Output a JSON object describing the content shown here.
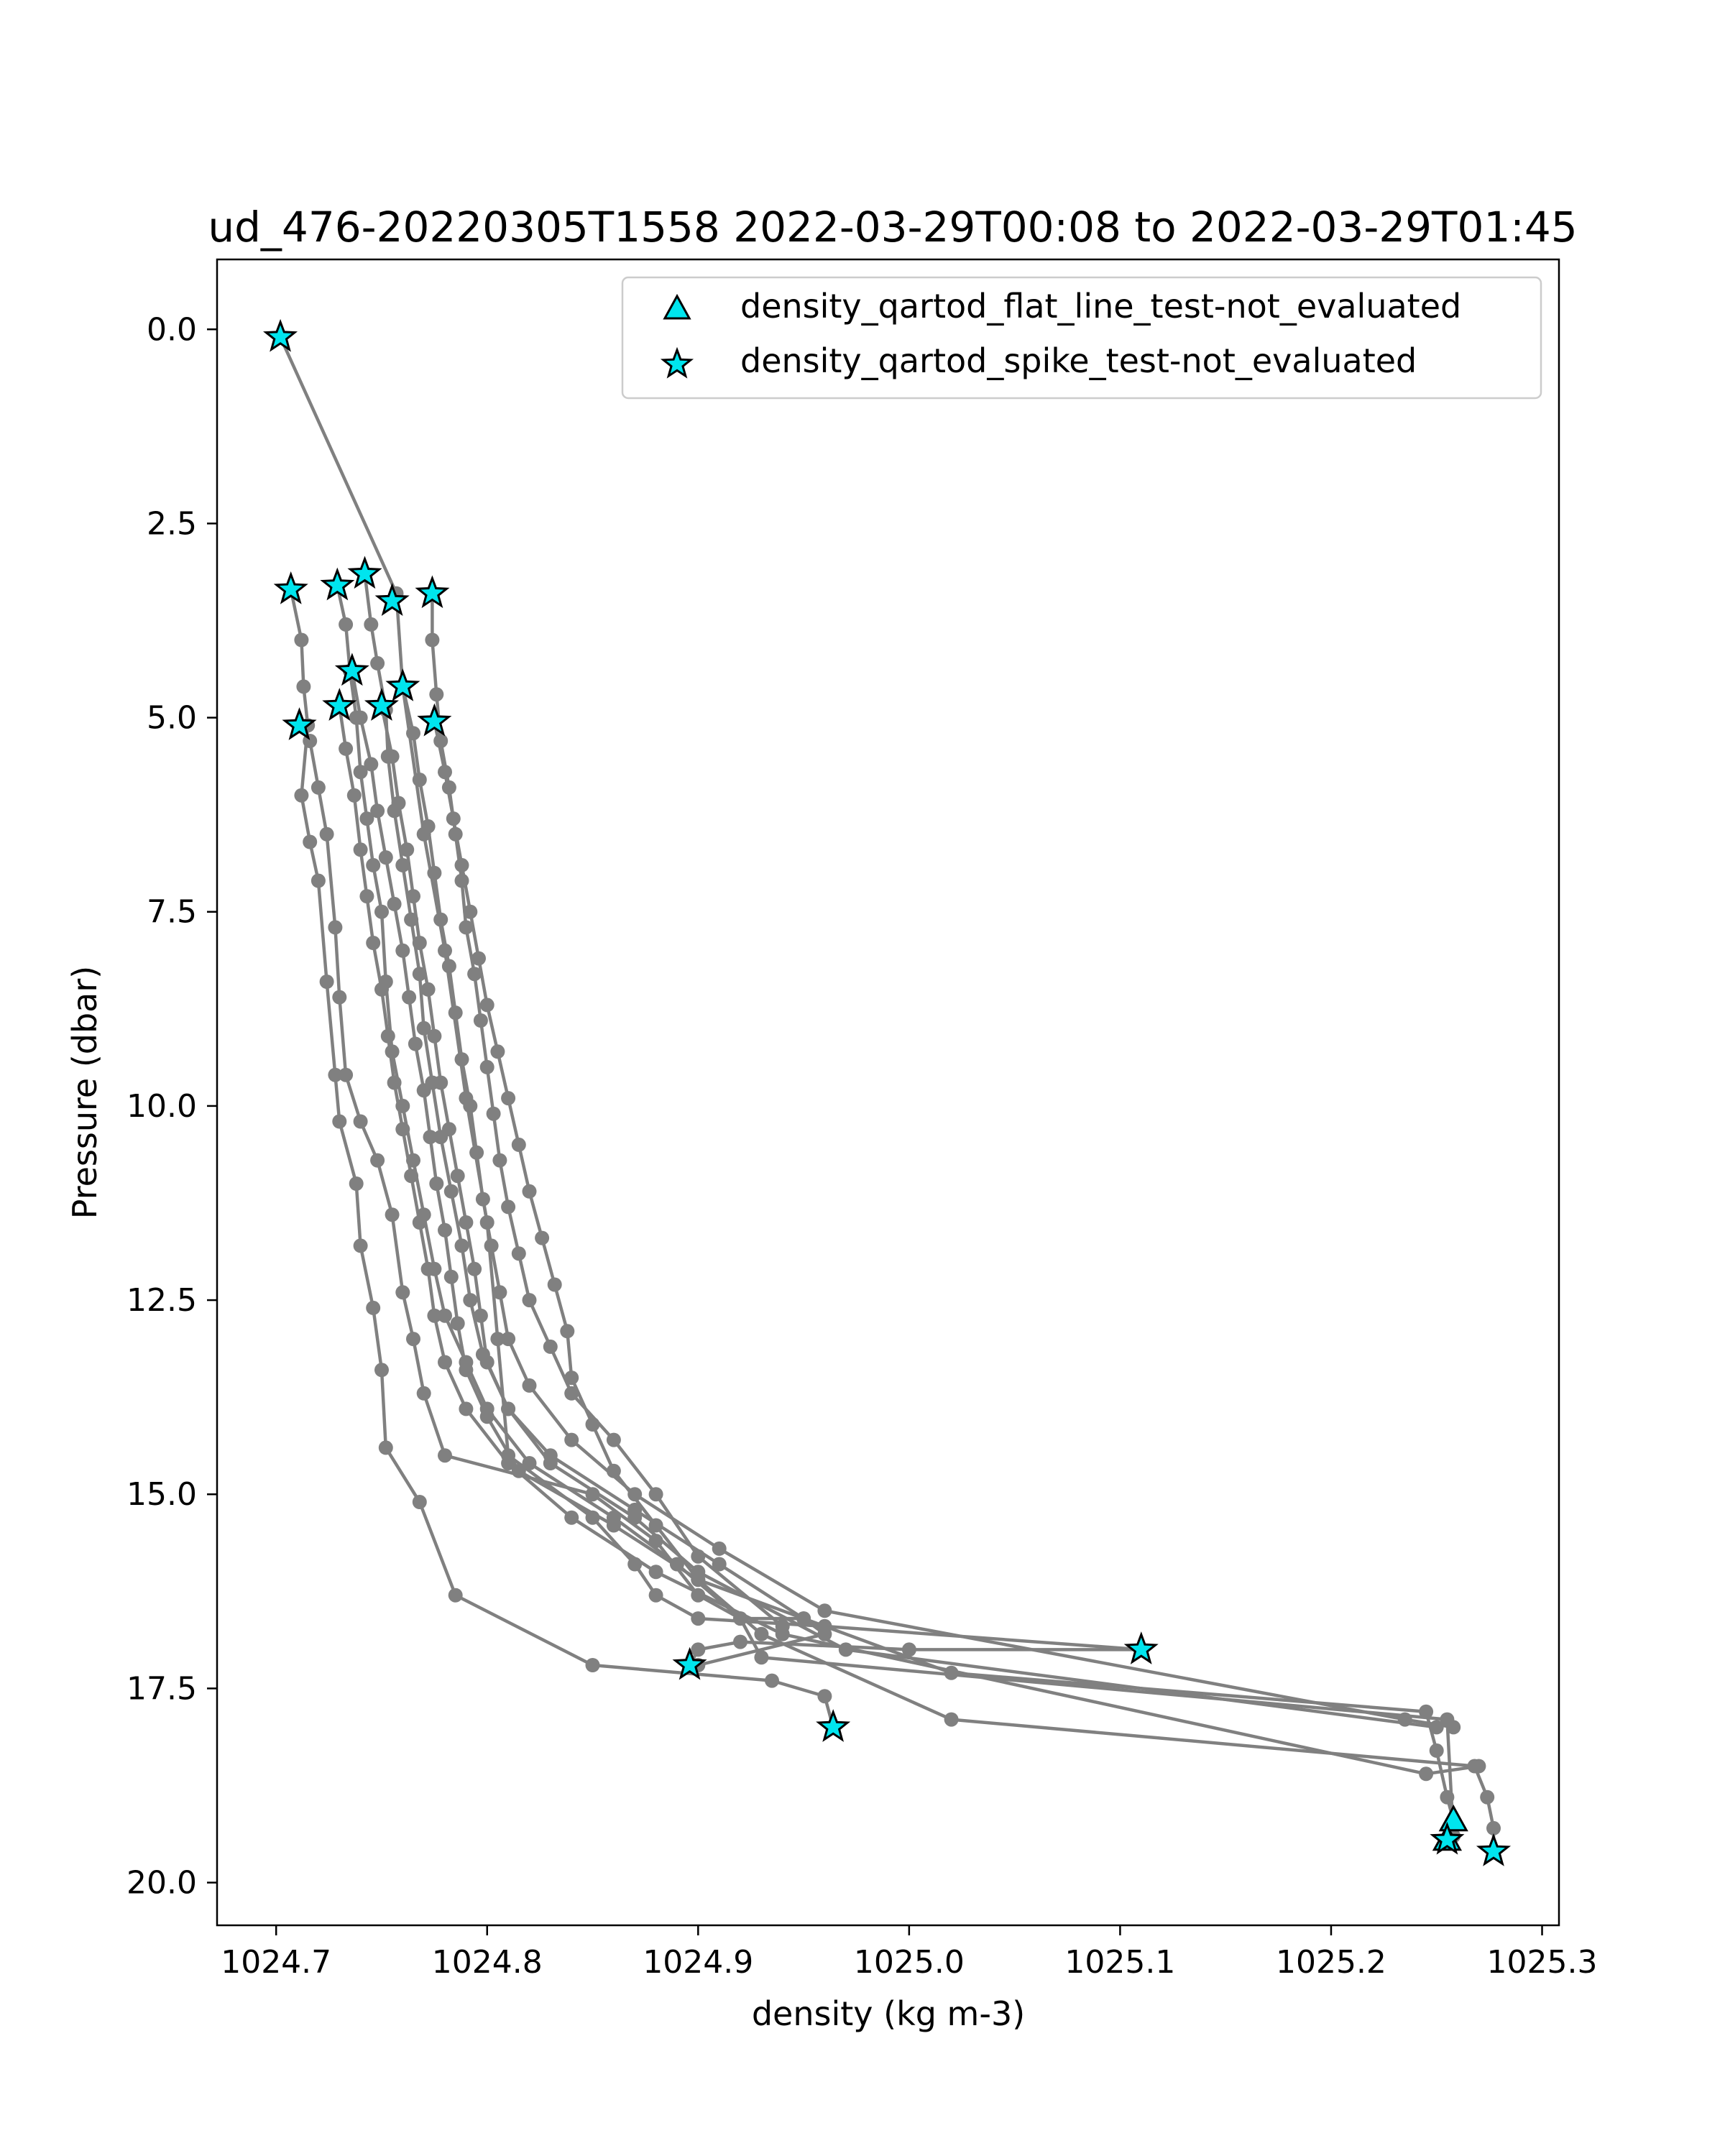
{
  "chart_data": {
    "type": "scatter",
    "title": "ud_476-20220305T1558 2022-03-29T00:08 to 2022-03-29T01:45",
    "xlabel": "density (kg m-3)",
    "ylabel": "Pressure (dbar)",
    "xlim": [
      1024.672,
      1025.308
    ],
    "ylim": [
      20.55,
      -0.9
    ],
    "y_inverted": true,
    "xticks": [
      1024.7,
      1024.8,
      1024.9,
      1025.0,
      1025.1,
      1025.2,
      1025.3
    ],
    "xtick_labels": [
      "1024.7",
      "1024.8",
      "1024.9",
      "1025.0",
      "1025.1",
      "1025.2",
      "1025.3"
    ],
    "yticks": [
      0.0,
      2.5,
      5.0,
      7.5,
      10.0,
      12.5,
      15.0,
      17.5,
      20.0
    ],
    "ytick_labels": [
      "0.0",
      "2.5",
      "5.0",
      "7.5",
      "10.0",
      "12.5",
      "15.0",
      "17.5",
      "20.0"
    ],
    "grid": false,
    "legend_position": "top-right",
    "colors": {
      "profile": "#808080",
      "marker_fill": "#00e5ee",
      "marker_edge": "#000000"
    },
    "legend": [
      {
        "label": "density_qartod_flat_line_test-not_evaluated",
        "marker": "triangle"
      },
      {
        "label": "density_qartod_spike_test-not_evaluated",
        "marker": "star"
      }
    ],
    "profiles": [
      {
        "points": [
          [
            1024.702,
            0.1
          ],
          [
            1024.757,
            3.4
          ],
          [
            1024.76,
            4.6
          ],
          [
            1024.77,
            6.5
          ],
          [
            1024.78,
            8.0
          ],
          [
            1024.79,
            9.9
          ],
          [
            1024.8,
            11.5
          ],
          [
            1024.805,
            13.0
          ],
          [
            1024.81,
            14.5
          ],
          [
            1024.85,
            15.3
          ],
          [
            1024.87,
            15.9
          ],
          [
            1024.88,
            16.3
          ],
          [
            1024.9,
            16.6
          ],
          [
            1024.96,
            16.7
          ],
          [
            1025.11,
            17.0
          ]
        ]
      },
      {
        "points": [
          [
            1025.11,
            17.0
          ],
          [
            1025.0,
            17.0
          ],
          [
            1024.92,
            16.9
          ],
          [
            1024.9,
            17.0
          ],
          [
            1024.896,
            17.2
          ]
        ]
      },
      {
        "points": [
          [
            1024.707,
            3.35
          ],
          [
            1024.712,
            4.0
          ],
          [
            1024.713,
            4.6
          ],
          [
            1024.715,
            5.1
          ],
          [
            1024.712,
            6.0
          ],
          [
            1024.716,
            6.6
          ],
          [
            1024.72,
            7.1
          ],
          [
            1024.724,
            8.4
          ],
          [
            1024.728,
            9.6
          ],
          [
            1024.73,
            10.2
          ],
          [
            1024.738,
            11.0
          ],
          [
            1024.74,
            11.8
          ],
          [
            1024.746,
            12.6
          ],
          [
            1024.75,
            13.4
          ],
          [
            1024.752,
            14.4
          ],
          [
            1024.768,
            15.1
          ],
          [
            1024.785,
            16.3
          ],
          [
            1024.85,
            17.2
          ],
          [
            1024.935,
            17.4
          ],
          [
            1024.96,
            17.6
          ],
          [
            1024.964,
            18.0
          ]
        ]
      },
      {
        "points": [
          [
            1024.711,
            5.1
          ],
          [
            1024.716,
            5.3
          ],
          [
            1024.72,
            5.9
          ],
          [
            1024.724,
            6.5
          ],
          [
            1024.728,
            7.7
          ],
          [
            1024.73,
            8.6
          ],
          [
            1024.733,
            9.6
          ],
          [
            1024.74,
            10.2
          ],
          [
            1024.748,
            10.7
          ],
          [
            1024.755,
            11.4
          ],
          [
            1024.76,
            12.4
          ],
          [
            1024.765,
            13.0
          ],
          [
            1024.77,
            13.7
          ],
          [
            1024.78,
            14.5
          ],
          [
            1024.85,
            15.0
          ],
          [
            1024.88,
            15.6
          ],
          [
            1024.9,
            16.3
          ],
          [
            1024.92,
            16.6
          ],
          [
            1024.95,
            16.6
          ],
          [
            1025.02,
            17.3
          ],
          [
            1025.245,
            17.8
          ],
          [
            1025.25,
            18.3
          ],
          [
            1025.255,
            18.9
          ],
          [
            1025.258,
            19.2
          ]
        ]
      },
      {
        "points": [
          [
            1024.729,
            3.3
          ],
          [
            1024.733,
            3.8
          ],
          [
            1024.735,
            4.4
          ],
          [
            1024.738,
            5.0
          ],
          [
            1024.74,
            5.7
          ],
          [
            1024.743,
            6.3
          ],
          [
            1024.746,
            6.9
          ],
          [
            1024.75,
            7.5
          ],
          [
            1024.752,
            8.4
          ],
          [
            1024.755,
            9.3
          ],
          [
            1024.76,
            10.0
          ],
          [
            1024.765,
            10.7
          ],
          [
            1024.77,
            11.4
          ],
          [
            1024.775,
            12.1
          ],
          [
            1024.78,
            12.7
          ],
          [
            1024.79,
            13.3
          ],
          [
            1024.8,
            13.9
          ],
          [
            1024.82,
            14.6
          ],
          [
            1024.86,
            15.3
          ],
          [
            1024.89,
            15.9
          ],
          [
            1024.92,
            16.6
          ],
          [
            1024.93,
            17.1
          ],
          [
            1025.255,
            17.9
          ],
          [
            1025.258,
            19.4
          ]
        ]
      },
      {
        "points": [
          [
            1024.742,
            3.15
          ],
          [
            1024.745,
            3.8
          ],
          [
            1024.748,
            4.3
          ],
          [
            1024.752,
            4.9
          ],
          [
            1024.753,
            5.5
          ],
          [
            1024.756,
            6.2
          ],
          [
            1024.76,
            6.9
          ],
          [
            1024.764,
            7.6
          ],
          [
            1024.768,
            8.3
          ],
          [
            1024.77,
            9.0
          ],
          [
            1024.774,
            9.7
          ],
          [
            1024.778,
            10.4
          ],
          [
            1024.783,
            11.1
          ],
          [
            1024.788,
            11.8
          ],
          [
            1024.792,
            12.5
          ],
          [
            1024.798,
            13.2
          ],
          [
            1024.81,
            13.9
          ],
          [
            1024.83,
            14.6
          ],
          [
            1024.87,
            15.3
          ],
          [
            1024.9,
            16.0
          ],
          [
            1024.97,
            17.0
          ],
          [
            1025.25,
            18.0
          ]
        ]
      },
      {
        "points": [
          [
            1024.736,
            4.4
          ],
          [
            1024.74,
            5.0
          ],
          [
            1024.745,
            5.6
          ],
          [
            1024.748,
            6.2
          ],
          [
            1024.752,
            6.8
          ],
          [
            1024.756,
            7.4
          ],
          [
            1024.76,
            8.0
          ],
          [
            1024.763,
            8.6
          ],
          [
            1024.766,
            9.2
          ],
          [
            1024.77,
            9.8
          ],
          [
            1024.773,
            10.4
          ],
          [
            1024.776,
            11.0
          ],
          [
            1024.78,
            11.6
          ],
          [
            1024.783,
            12.2
          ],
          [
            1024.786,
            12.8
          ],
          [
            1024.79,
            13.4
          ],
          [
            1024.8,
            14.0
          ],
          [
            1024.815,
            14.7
          ],
          [
            1024.86,
            15.4
          ],
          [
            1024.9,
            16.1
          ],
          [
            1024.93,
            16.8
          ],
          [
            1025.02,
            17.9
          ],
          [
            1025.268,
            18.5
          ],
          [
            1025.274,
            18.9
          ],
          [
            1025.277,
            19.3
          ],
          [
            1025.277,
            19.6
          ]
        ]
      },
      {
        "points": [
          [
            1024.73,
            4.85
          ],
          [
            1024.733,
            5.4
          ],
          [
            1024.737,
            6.0
          ],
          [
            1024.74,
            6.7
          ],
          [
            1024.743,
            7.3
          ],
          [
            1024.746,
            7.9
          ],
          [
            1024.75,
            8.5
          ],
          [
            1024.753,
            9.1
          ],
          [
            1024.756,
            9.7
          ],
          [
            1024.76,
            10.3
          ],
          [
            1024.764,
            10.9
          ],
          [
            1024.768,
            11.5
          ],
          [
            1024.772,
            12.1
          ],
          [
            1024.775,
            12.7
          ],
          [
            1024.78,
            13.3
          ],
          [
            1024.79,
            13.9
          ],
          [
            1024.81,
            14.6
          ],
          [
            1024.84,
            15.3
          ],
          [
            1024.88,
            16.0
          ],
          [
            1024.94,
            16.8
          ],
          [
            1025.245,
            18.6
          ],
          [
            1025.27,
            18.5
          ]
        ]
      },
      {
        "points": [
          [
            1024.75,
            4.85
          ],
          [
            1024.755,
            5.5
          ],
          [
            1024.758,
            6.1
          ],
          [
            1024.762,
            6.7
          ],
          [
            1024.765,
            7.3
          ],
          [
            1024.768,
            7.9
          ],
          [
            1024.772,
            8.5
          ],
          [
            1024.775,
            9.1
          ],
          [
            1024.778,
            9.7
          ],
          [
            1024.782,
            10.3
          ],
          [
            1024.786,
            10.9
          ],
          [
            1024.79,
            11.5
          ],
          [
            1024.794,
            12.1
          ],
          [
            1024.797,
            12.7
          ],
          [
            1024.8,
            13.3
          ],
          [
            1024.81,
            13.9
          ],
          [
            1024.83,
            14.5
          ],
          [
            1024.87,
            15.2
          ],
          [
            1024.91,
            15.9
          ],
          [
            1024.95,
            16.6
          ],
          [
            1024.96,
            16.8
          ],
          [
            1024.9,
            17.2
          ]
        ]
      },
      {
        "points": [
          [
            1024.76,
            4.6
          ],
          [
            1024.765,
            5.2
          ],
          [
            1024.768,
            5.8
          ],
          [
            1024.772,
            6.4
          ],
          [
            1024.775,
            7.0
          ],
          [
            1024.778,
            7.6
          ],
          [
            1024.782,
            8.2
          ],
          [
            1024.785,
            8.8
          ],
          [
            1024.788,
            9.4
          ],
          [
            1024.792,
            10.0
          ],
          [
            1024.795,
            10.6
          ],
          [
            1024.798,
            11.2
          ],
          [
            1024.802,
            11.8
          ],
          [
            1024.806,
            12.4
          ],
          [
            1024.81,
            13.0
          ],
          [
            1024.82,
            13.6
          ],
          [
            1024.84,
            14.3
          ],
          [
            1024.87,
            15.0
          ],
          [
            1024.91,
            15.7
          ],
          [
            1024.96,
            16.5
          ],
          [
            1025.235,
            17.9
          ],
          [
            1025.258,
            18.0
          ]
        ]
      },
      {
        "points": [
          [
            1024.774,
            3.4
          ],
          [
            1024.774,
            4.0
          ],
          [
            1024.776,
            4.7
          ],
          [
            1024.778,
            5.3
          ],
          [
            1024.782,
            5.9
          ],
          [
            1024.785,
            6.5
          ],
          [
            1024.788,
            7.1
          ],
          [
            1024.79,
            7.7
          ],
          [
            1024.794,
            8.3
          ],
          [
            1024.797,
            8.9
          ],
          [
            1024.8,
            9.5
          ],
          [
            1024.803,
            10.1
          ],
          [
            1024.806,
            10.7
          ],
          [
            1024.81,
            11.3
          ],
          [
            1024.815,
            11.9
          ],
          [
            1024.82,
            12.5
          ],
          [
            1024.83,
            13.1
          ],
          [
            1024.84,
            13.7
          ],
          [
            1024.86,
            14.3
          ],
          [
            1024.88,
            15.0
          ],
          [
            1024.9,
            15.8
          ],
          [
            1024.94,
            16.7
          ]
        ]
      },
      {
        "points": [
          [
            1024.775,
            5.05
          ],
          [
            1024.78,
            5.7
          ],
          [
            1024.784,
            6.3
          ],
          [
            1024.788,
            6.9
          ],
          [
            1024.792,
            7.5
          ],
          [
            1024.796,
            8.1
          ],
          [
            1024.8,
            8.7
          ],
          [
            1024.805,
            9.3
          ],
          [
            1024.81,
            9.9
          ],
          [
            1024.815,
            10.5
          ],
          [
            1024.82,
            11.1
          ],
          [
            1024.826,
            11.7
          ],
          [
            1024.832,
            12.3
          ],
          [
            1024.838,
            12.9
          ],
          [
            1024.84,
            13.5
          ],
          [
            1024.85,
            14.1
          ],
          [
            1024.86,
            14.7
          ],
          [
            1024.88,
            15.4
          ],
          [
            1024.9,
            16.1
          ],
          [
            1024.96,
            16.7
          ]
        ]
      }
    ],
    "flat_line_markers": [
      [
        1025.258,
        19.2
      ],
      [
        1025.255,
        19.45
      ]
    ],
    "spike_markers": [
      [
        1024.702,
        0.1
      ],
      [
        1024.707,
        3.35
      ],
      [
        1024.729,
        3.3
      ],
      [
        1024.742,
        3.15
      ],
      [
        1024.755,
        3.5
      ],
      [
        1024.774,
        3.4
      ],
      [
        1024.736,
        4.4
      ],
      [
        1024.76,
        4.6
      ],
      [
        1024.73,
        4.85
      ],
      [
        1024.75,
        4.85
      ],
      [
        1024.711,
        5.1
      ],
      [
        1024.775,
        5.05
      ],
      [
        1025.11,
        17.0
      ],
      [
        1024.896,
        17.2
      ],
      [
        1024.964,
        18.0
      ],
      [
        1025.255,
        19.45
      ],
      [
        1025.277,
        19.6
      ]
    ]
  }
}
